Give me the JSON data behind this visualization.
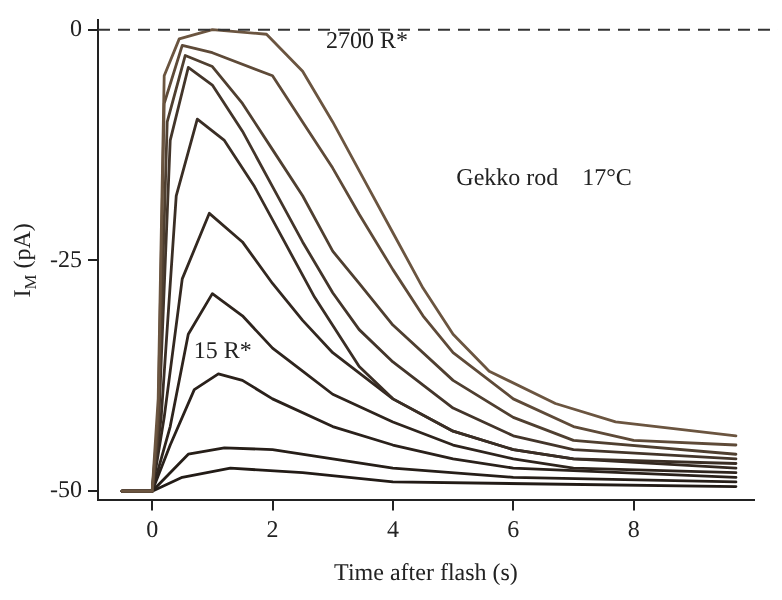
{
  "chart_data": {
    "type": "line",
    "xlabel": "Time after flash (s)",
    "ylabel": "I$_{M}$ (pA)",
    "xlim": [
      -0.9,
      10
    ],
    "ylim": [
      -51,
      1
    ],
    "xticks": [
      0,
      2,
      4,
      6,
      8
    ],
    "yticks": [
      0,
      -25,
      -50
    ],
    "grid": false,
    "legend": false,
    "marker": "none",
    "line_style": "solid",
    "series": [
      {
        "color": "#6b5540",
        "x": [
          -0.5,
          0,
          0.1,
          0.2,
          0.45,
          1.0,
          1.9,
          2.5,
          3,
          3.5,
          4,
          4.5,
          5,
          5.6,
          6.7,
          7.7,
          9.7
        ],
        "values": [
          -50,
          -50,
          -40,
          -5,
          -1,
          0,
          -0.5,
          -4.5,
          -10,
          -16,
          -22,
          -28,
          -33,
          -37,
          -40.5,
          -42.5,
          -44
        ]
      },
      {
        "color": "#5e4a38",
        "x": [
          -0.5,
          0,
          0.1,
          0.2,
          0.5,
          1.0,
          2,
          2.5,
          3,
          3.44,
          4,
          4.5,
          5,
          6,
          7,
          8,
          9.7
        ],
        "values": [
          -50,
          -50,
          -42,
          -8,
          -1.7,
          -2.5,
          -5,
          -10,
          -15,
          -20,
          -26,
          -31,
          -35,
          -40,
          -43,
          -44.5,
          -45
        ]
      },
      {
        "color": "#4f3f30",
        "x": [
          -0.5,
          0,
          0.1,
          0.25,
          0.55,
          1,
          1.5,
          2,
          2.5,
          3,
          3.44,
          4,
          5,
          6,
          7,
          9.7
        ],
        "values": [
          -50,
          -50,
          -43,
          -10,
          -2.8,
          -4,
          -8,
          -13,
          -18,
          -24,
          -27.5,
          -32,
          -38,
          -42,
          -44.5,
          -46
        ]
      },
      {
        "color": "#43352a",
        "x": [
          -0.5,
          0,
          0.1,
          0.3,
          0.6,
          1,
          1.5,
          2,
          2.5,
          3,
          3.44,
          4,
          5,
          6,
          7,
          9.7
        ],
        "values": [
          -50,
          -50,
          -44,
          -12,
          -4.1,
          -6,
          -11,
          -17,
          -23,
          -28.5,
          -32.5,
          -36,
          -41,
          -44,
          -45.5,
          -46.5
        ]
      },
      {
        "color": "#3a2e25",
        "x": [
          -0.5,
          0,
          0.15,
          0.4,
          0.75,
          1.2,
          1.7,
          2.2,
          2.7,
          3.44,
          4,
          5,
          6,
          7,
          9.7
        ],
        "values": [
          -50,
          -50,
          -42,
          -18,
          -9.7,
          -12,
          -17,
          -23,
          -29,
          -36.5,
          -40,
          -43.5,
          -45.5,
          -46.5,
          -47
        ]
      },
      {
        "color": "#332820",
        "x": [
          -0.5,
          0,
          0.2,
          0.5,
          0.95,
          1.5,
          2,
          2.5,
          3,
          4,
          5,
          6,
          7,
          9.7
        ],
        "values": [
          -50,
          -50,
          -42,
          -27,
          -19.9,
          -23,
          -27.5,
          -31.5,
          -35,
          -40,
          -43.5,
          -45.5,
          -46.5,
          -47.5
        ]
      },
      {
        "color": "#2e241d",
        "x": [
          -0.5,
          0,
          0.3,
          0.6,
          1.0,
          1.5,
          2,
          2.5,
          3,
          4,
          5,
          6,
          7,
          9.7
        ],
        "values": [
          -50,
          -50,
          -43,
          -33,
          -28.6,
          -31,
          -34.5,
          -37,
          -39.5,
          -42.5,
          -45,
          -46.5,
          -47.5,
          -48
        ]
      },
      {
        "color": "#2a211b",
        "x": [
          -0.5,
          0,
          0.3,
          0.7,
          1.1,
          1.5,
          2,
          3,
          4,
          5,
          6,
          9.7
        ],
        "values": [
          -50,
          -50,
          -45,
          -39,
          -37.3,
          -38,
          -40,
          -43,
          -45,
          -46.5,
          -47.5,
          -48.5
        ]
      },
      {
        "color": "#261e18",
        "x": [
          -0.5,
          0,
          0.3,
          0.6,
          1.2,
          2,
          3,
          4,
          6,
          9.7
        ],
        "values": [
          -50,
          -50,
          -48,
          -46,
          -45.3,
          -45.5,
          -46.5,
          -47.5,
          -48.5,
          -49
        ]
      },
      {
        "color": "#221b16",
        "x": [
          -0.5,
          0,
          0.5,
          1.3,
          2.5,
          4,
          9.7
        ],
        "values": [
          -50,
          -50,
          -48.5,
          -47.5,
          -48,
          -49,
          -49.5
        ]
      }
    ],
    "ref_lines": [
      {
        "axis": "y",
        "value": 0,
        "color": "#333333",
        "line_style": "dashed"
      }
    ],
    "annotations": [
      "2700 R*",
      "15 R*",
      "Gekko rod    17°C"
    ]
  }
}
